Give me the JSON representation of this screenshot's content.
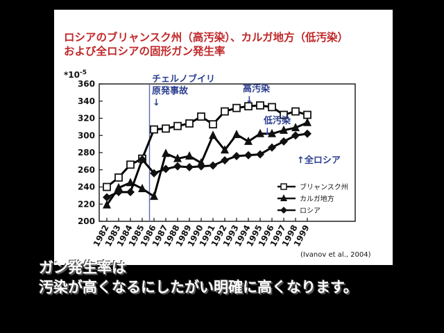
{
  "caption": {
    "line1": "ガン発生率は",
    "line2": "汚染が高くなるにしたがい明確に高くなります。"
  },
  "chart_data": {
    "type": "line",
    "title_line1": "ロシアのブリャンスク州（高汚染）、カルガ地方（低汚染）",
    "title_line2": "および全ロシアの固形ガン発生率",
    "y_unit": "*10-5",
    "ylim": [
      200,
      360
    ],
    "yticks": [
      "200",
      "220",
      "240",
      "260",
      "280",
      "300",
      "320",
      "340",
      "360"
    ],
    "categories": [
      "1982",
      "1983",
      "1984",
      "1985",
      "1986",
      "1987",
      "1988",
      "1989",
      "1990",
      "1991",
      "1992",
      "1993",
      "1994",
      "1995",
      "1996",
      "1997",
      "1998",
      "1999"
    ],
    "series": [
      {
        "name": "ブリャンスク州",
        "marker": "square",
        "color": "#000000",
        "values": [
          240,
          251,
          266,
          273,
          307,
          308,
          311,
          314,
          322,
          313,
          328,
          332,
          334,
          335,
          333,
          324,
          328,
          324
        ]
      },
      {
        "name": "カルガ地方",
        "marker": "triangle",
        "color": "#000000",
        "values": [
          219,
          239,
          245,
          238,
          229,
          279,
          273,
          276,
          268,
          300,
          283,
          301,
          293,
          302,
          302,
          306,
          309,
          315
        ]
      },
      {
        "name": "ロシア",
        "marker": "diamond",
        "color": "#000000",
        "values": [
          228,
          234,
          234,
          272,
          256,
          261,
          264,
          263,
          264,
          265,
          271,
          276,
          277,
          278,
          286,
          293,
          300,
          302
        ]
      }
    ],
    "annotations": {
      "chernobyl": "チェルノブイリ\n原発事故",
      "high": "高汚染",
      "low": "低汚染",
      "russia": "↑全ロシア",
      "arrow": "↓"
    },
    "source": "(Ivanov et al., 2004)",
    "legend_position": "bottom-right",
    "grid": false,
    "colors": {
      "annotation": "#2a3d8f",
      "title": "#c0282a",
      "event_line": "#5a6aa8"
    }
  }
}
